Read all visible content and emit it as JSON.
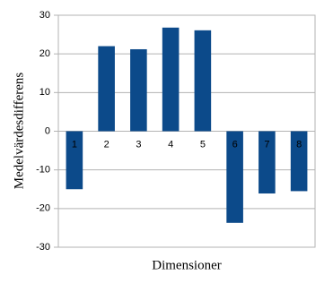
{
  "chart_data": {
    "type": "bar",
    "y_label": "Medelvärdesdifferens",
    "x_label": "Dimensioner",
    "categories": [
      "1",
      "2",
      "3",
      "4",
      "5",
      "6",
      "7",
      "8"
    ],
    "values": [
      -15,
      22,
      21.2,
      26.8,
      26.1,
      -23.7,
      -16.1,
      -15.5
    ],
    "color": "#0c4a8a",
    "ylim": [
      -30,
      30
    ],
    "yticks": [
      -30,
      -20,
      -10,
      0,
      10,
      20,
      30
    ],
    "grid": true
  }
}
